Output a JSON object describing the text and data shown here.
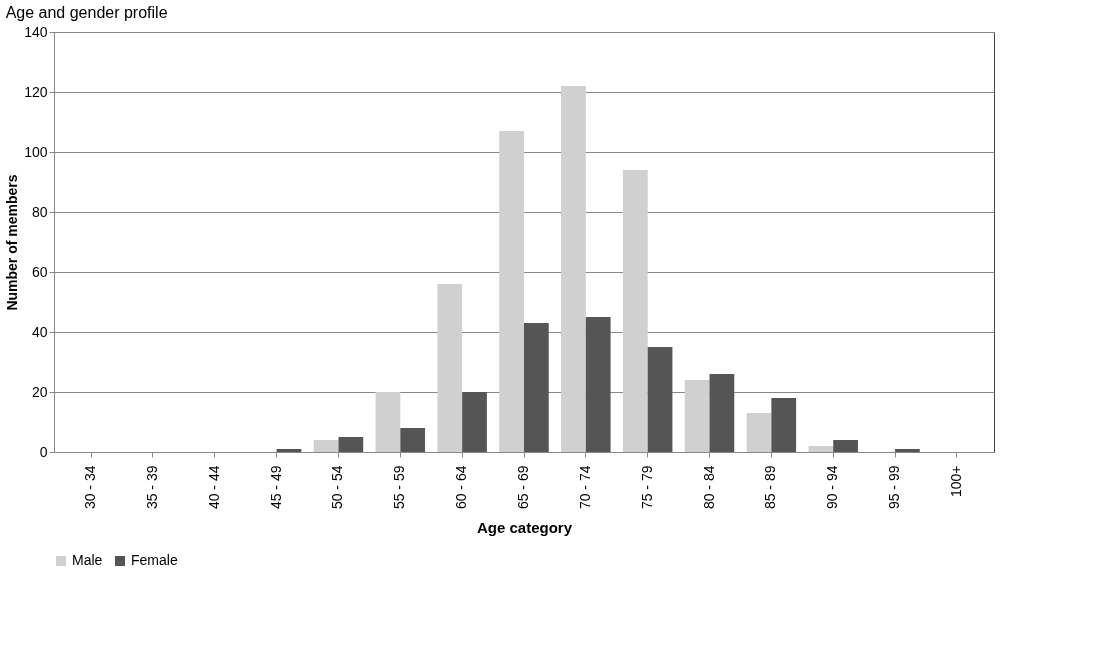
{
  "chart_data": {
    "type": "bar",
    "title": "Age and gender profile",
    "xlabel": "Age category",
    "ylabel": "Number of members",
    "categories": [
      "30 - 34",
      "35 - 39",
      "40 - 44",
      "45 - 49",
      "50 - 54",
      "55 - 59",
      "60 - 64",
      "65 - 69",
      "70 - 74",
      "75 - 79",
      "80 - 84",
      "85 - 89",
      "90 - 94",
      "95 - 99",
      "100+"
    ],
    "series": [
      {
        "name": "Male",
        "color": "#d0d0d0",
        "values": [
          0,
          0,
          0,
          0,
          4,
          20,
          56,
          107,
          122,
          94,
          24,
          13,
          2,
          0,
          0
        ]
      },
      {
        "name": "Female",
        "color": "#555555",
        "values": [
          0,
          0,
          0,
          1,
          5,
          8,
          20,
          43,
          45,
          35,
          26,
          18,
          4,
          1,
          0
        ]
      }
    ],
    "ylim": [
      0,
      140
    ],
    "yticks": [
      0,
      20,
      40,
      60,
      80,
      100,
      120,
      140
    ],
    "grid": "y",
    "legend": "bottom"
  }
}
